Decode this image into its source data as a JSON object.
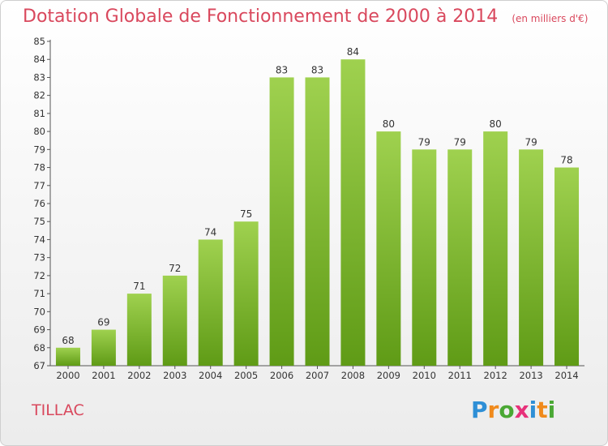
{
  "header": {
    "title": "Dotation Globale de Fonctionnement de 2000 à 2014",
    "unit": "(en milliers d'€)"
  },
  "footer": {
    "place": "TILLAC",
    "logo_text": "Proxiti"
  },
  "colors": {
    "title": "#d9485d",
    "bar_light": "#9fd14f",
    "bar_dark": "#5f9b16",
    "logo_p": "#2e8fd6",
    "logo_r": "#f08a1c",
    "logo_o": "#4aa834",
    "logo_x": "#e7317a",
    "logo_i": "#2e8fd6",
    "logo_t": "#f08a1c",
    "logo_i2": "#4aa834"
  },
  "chart_data": {
    "type": "bar",
    "title": "Dotation Globale de Fonctionnement de 2000 à 2014",
    "subtitle": "(en milliers d'€)",
    "xlabel": "",
    "ylabel": "",
    "ylim": [
      67,
      85
    ],
    "yticks": [
      67,
      68,
      69,
      70,
      71,
      72,
      73,
      74,
      75,
      76,
      77,
      78,
      79,
      80,
      81,
      82,
      83,
      84,
      85
    ],
    "grid": false,
    "categories": [
      "2000",
      "2001",
      "2002",
      "2003",
      "2004",
      "2005",
      "2006",
      "2007",
      "2008",
      "2009",
      "2010",
      "2011",
      "2012",
      "2013",
      "2014"
    ],
    "values": [
      68,
      69,
      71,
      72,
      74,
      75,
      83,
      83,
      84,
      80,
      79,
      79,
      80,
      79,
      78
    ]
  }
}
